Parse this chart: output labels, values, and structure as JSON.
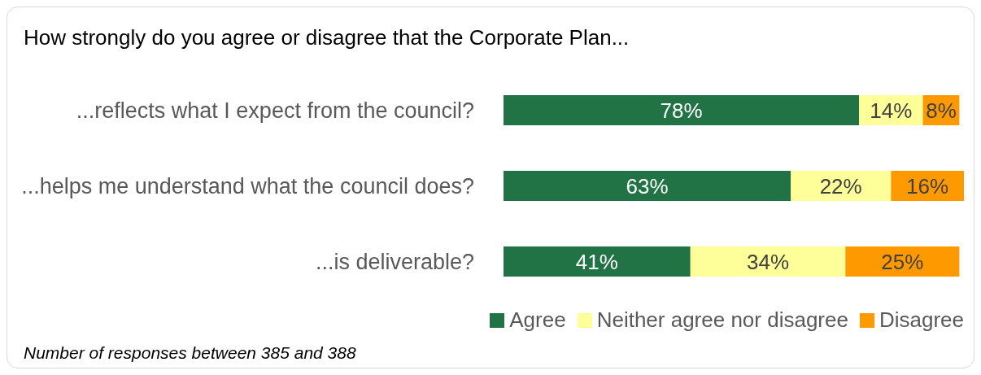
{
  "chart_data": {
    "type": "bar",
    "orientation": "horizontal",
    "stacked": true,
    "title": "How strongly do you agree or disagree that the Corporate Plan...",
    "categories": [
      "...reflects what I expect from the council?",
      "...helps me understand what the council does?",
      "...is deliverable?"
    ],
    "series": [
      {
        "name": "Agree",
        "color": "#217346",
        "values": [
          78,
          63,
          41
        ],
        "value_labels": [
          "78%",
          "63%",
          "41%"
        ]
      },
      {
        "name": "Neither agree nor disagree",
        "color": "#ffff99",
        "values": [
          14,
          22,
          34
        ],
        "value_labels": [
          "14%",
          "22%",
          "34%"
        ]
      },
      {
        "name": "Disagree",
        "color": "#ff9900",
        "values": [
          8,
          16,
          25
        ],
        "value_labels": [
          "8%",
          "16%",
          "25%"
        ]
      }
    ],
    "legend": "bottom right",
    "annotations": [
      "Number of responses between 385 and 388"
    ]
  }
}
